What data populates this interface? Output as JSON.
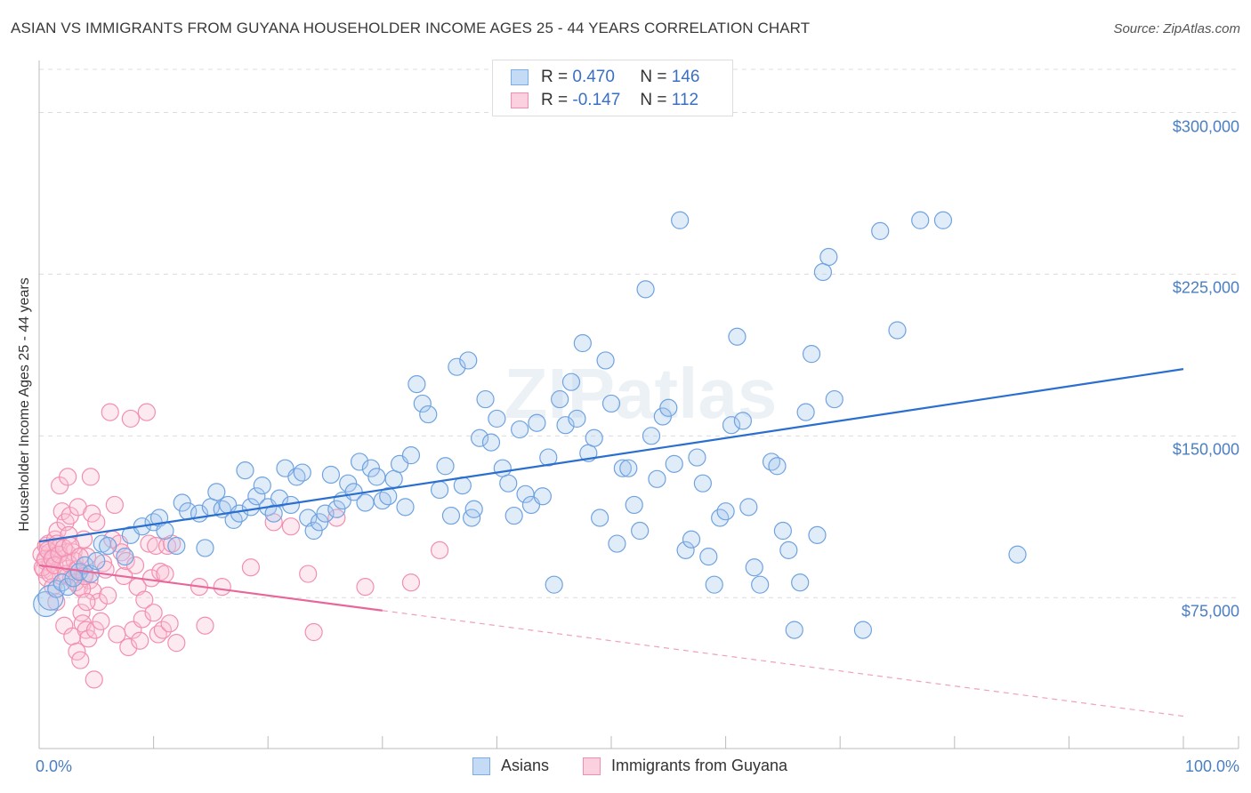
{
  "title": "ASIAN VS IMMIGRANTS FROM GUYANA HOUSEHOLDER INCOME AGES 25 - 44 YEARS CORRELATION CHART",
  "source": "Source: ZipAtlas.com",
  "watermark": "ZIPatlas",
  "colors": {
    "blue": "#7aaee8",
    "blue_line": "#2a6fcf",
    "pink": "#f28fb0",
    "pink_line": "#e8679a",
    "tick_text": "#4a7fc1"
  },
  "legend_top": {
    "rows": [
      {
        "r_label": "R =",
        "r_value": "0.470",
        "n_label": "N =",
        "n_value": "146"
      },
      {
        "r_label": "R =",
        "r_value": "-0.147",
        "n_label": "N =",
        "n_value": "112"
      }
    ]
  },
  "legend_bottom": {
    "series1": "Asians",
    "series2": "Immigrants from Guyana"
  },
  "chart_data": {
    "type": "scatter",
    "title": "ASIAN VS IMMIGRANTS FROM GUYANA HOUSEHOLDER INCOME AGES 25 - 44 YEARS CORRELATION CHART",
    "xlabel": "",
    "ylabel": "Householder Income Ages 25 - 44 years",
    "xlim": [
      0,
      100
    ],
    "ylim": [
      5000,
      320000
    ],
    "x_tick_labels": [
      "0.0%",
      "100.0%"
    ],
    "y_ticks": [
      75000,
      150000,
      225000,
      300000
    ],
    "y_tick_labels": [
      "$75,000",
      "$150,000",
      "$225,000",
      "$300,000"
    ],
    "grid": true,
    "legend": "bottom",
    "series": [
      {
        "name": "Asians",
        "r": 0.47,
        "n": 146,
        "trend": {
          "x": [
            0,
            100
          ],
          "y": [
            101000,
            181000
          ],
          "dashed_from": null
        },
        "points": [
          [
            0.6,
            72000
          ],
          [
            1.0,
            75000
          ],
          [
            1.5,
            79000
          ],
          [
            2.0,
            82000
          ],
          [
            2.5,
            80000
          ],
          [
            3.0,
            84000
          ],
          [
            3.5,
            87000
          ],
          [
            4.0,
            90000
          ],
          [
            4.5,
            86000
          ],
          [
            5.0,
            92000
          ],
          [
            5.5,
            100000
          ],
          [
            6.0,
            99000
          ],
          [
            7.5,
            94000
          ],
          [
            8.0,
            104000
          ],
          [
            9.0,
            108000
          ],
          [
            10.0,
            110000
          ],
          [
            10.5,
            112000
          ],
          [
            11.0,
            106000
          ],
          [
            12.0,
            99000
          ],
          [
            12.5,
            119000
          ],
          [
            13.0,
            115000
          ],
          [
            14.0,
            114000
          ],
          [
            14.5,
            98000
          ],
          [
            15.0,
            117000
          ],
          [
            15.5,
            124000
          ],
          [
            16.0,
            116000
          ],
          [
            16.5,
            118000
          ],
          [
            17.0,
            111000
          ],
          [
            17.5,
            114000
          ],
          [
            18.0,
            134000
          ],
          [
            18.5,
            117000
          ],
          [
            19.0,
            122000
          ],
          [
            19.5,
            127000
          ],
          [
            20.0,
            117000
          ],
          [
            20.5,
            114000
          ],
          [
            21.0,
            121000
          ],
          [
            21.5,
            135000
          ],
          [
            22.0,
            118000
          ],
          [
            22.5,
            131000
          ],
          [
            23.0,
            133000
          ],
          [
            23.5,
            112000
          ],
          [
            24.0,
            106000
          ],
          [
            24.5,
            110000
          ],
          [
            25.0,
            114000
          ],
          [
            25.5,
            132000
          ],
          [
            26.0,
            116000
          ],
          [
            26.5,
            120000
          ],
          [
            27.0,
            128000
          ],
          [
            27.5,
            124000
          ],
          [
            28.0,
            138000
          ],
          [
            28.5,
            119000
          ],
          [
            29.0,
            135000
          ],
          [
            29.5,
            131000
          ],
          [
            30.0,
            120000
          ],
          [
            30.5,
            122000
          ],
          [
            31.0,
            130000
          ],
          [
            31.5,
            137000
          ],
          [
            32.0,
            117000
          ],
          [
            32.5,
            141000
          ],
          [
            33.0,
            174000
          ],
          [
            33.5,
            165000
          ],
          [
            34.0,
            160000
          ],
          [
            35.0,
            125000
          ],
          [
            35.5,
            136000
          ],
          [
            36.0,
            113000
          ],
          [
            36.5,
            182000
          ],
          [
            37.0,
            127000
          ],
          [
            37.5,
            185000
          ],
          [
            37.8,
            112000
          ],
          [
            38.0,
            116000
          ],
          [
            38.5,
            149000
          ],
          [
            39.0,
            167000
          ],
          [
            39.5,
            147000
          ],
          [
            40.0,
            158000
          ],
          [
            40.5,
            135000
          ],
          [
            41.0,
            128000
          ],
          [
            41.5,
            113000
          ],
          [
            42.0,
            153000
          ],
          [
            42.5,
            123000
          ],
          [
            43.0,
            118000
          ],
          [
            43.5,
            156000
          ],
          [
            44.0,
            122000
          ],
          [
            44.5,
            140000
          ],
          [
            45.0,
            81000
          ],
          [
            45.5,
            167000
          ],
          [
            46.0,
            155000
          ],
          [
            46.5,
            175000
          ],
          [
            47.0,
            158000
          ],
          [
            47.5,
            193000
          ],
          [
            48.0,
            142000
          ],
          [
            48.5,
            149000
          ],
          [
            49.0,
            112000
          ],
          [
            49.5,
            185000
          ],
          [
            50.0,
            165000
          ],
          [
            50.5,
            100000
          ],
          [
            51.0,
            135000
          ],
          [
            51.5,
            135000
          ],
          [
            52.0,
            118000
          ],
          [
            52.5,
            106000
          ],
          [
            53.0,
            218000
          ],
          [
            53.5,
            150000
          ],
          [
            54.0,
            130000
          ],
          [
            54.5,
            159000
          ],
          [
            55.0,
            163000
          ],
          [
            55.5,
            137000
          ],
          [
            56.0,
            250000
          ],
          [
            56.5,
            97000
          ],
          [
            57.0,
            102000
          ],
          [
            57.5,
            140000
          ],
          [
            58.0,
            128000
          ],
          [
            58.5,
            94000
          ],
          [
            59.0,
            81000
          ],
          [
            59.5,
            112000
          ],
          [
            60.0,
            115000
          ],
          [
            60.5,
            155000
          ],
          [
            61.0,
            196000
          ],
          [
            61.5,
            157000
          ],
          [
            62.0,
            117000
          ],
          [
            62.5,
            89000
          ],
          [
            63.0,
            81000
          ],
          [
            64.0,
            138000
          ],
          [
            64.5,
            136000
          ],
          [
            65.0,
            106000
          ],
          [
            65.5,
            97000
          ],
          [
            66.0,
            60000
          ],
          [
            66.5,
            82000
          ],
          [
            67.0,
            161000
          ],
          [
            67.5,
            188000
          ],
          [
            68.0,
            104000
          ],
          [
            68.5,
            226000
          ],
          [
            69.0,
            233000
          ],
          [
            69.5,
            167000
          ],
          [
            72.0,
            60000
          ],
          [
            73.5,
            245000
          ],
          [
            75.0,
            199000
          ],
          [
            77.0,
            250000
          ],
          [
            79.0,
            250000
          ],
          [
            85.5,
            95000
          ]
        ]
      },
      {
        "name": "Immigrants from Guyana",
        "r": -0.147,
        "n": 112,
        "trend": {
          "x": [
            0,
            100
          ],
          "y": [
            90000,
            20000
          ],
          "solid_until": 30
        },
        "points": [
          [
            0.2,
            95000
          ],
          [
            0.4,
            88000
          ],
          [
            0.5,
            92000
          ],
          [
            0.6,
            99000
          ],
          [
            0.7,
            84000
          ],
          [
            0.8,
            100000
          ],
          [
            0.9,
            96000
          ],
          [
            1.0,
            91000
          ],
          [
            1.1,
            87000
          ],
          [
            1.2,
            80000
          ],
          [
            1.3,
            94000
          ],
          [
            1.4,
            102000
          ],
          [
            1.5,
            73000
          ],
          [
            1.6,
            106000
          ],
          [
            1.7,
            98000
          ],
          [
            1.8,
            127000
          ],
          [
            1.9,
            85000
          ],
          [
            2.0,
            115000
          ],
          [
            2.1,
            90000
          ],
          [
            2.2,
            62000
          ],
          [
            2.3,
            110000
          ],
          [
            2.4,
            96000
          ],
          [
            2.5,
            131000
          ],
          [
            2.6,
            104000
          ],
          [
            2.7,
            113000
          ],
          [
            2.8,
            84000
          ],
          [
            2.9,
            57000
          ],
          [
            3.0,
            96000
          ],
          [
            3.1,
            92000
          ],
          [
            3.2,
            88000
          ],
          [
            3.3,
            50000
          ],
          [
            3.4,
            117000
          ],
          [
            3.5,
            80000
          ],
          [
            3.6,
            46000
          ],
          [
            3.7,
            68000
          ],
          [
            3.8,
            63000
          ],
          [
            3.9,
            102000
          ],
          [
            4.0,
            86000
          ],
          [
            4.1,
            60000
          ],
          [
            4.2,
            94000
          ],
          [
            4.3,
            56000
          ],
          [
            4.4,
            83000
          ],
          [
            4.5,
            131000
          ],
          [
            4.6,
            114000
          ],
          [
            4.7,
            78000
          ],
          [
            4.8,
            37000
          ],
          [
            4.9,
            60000
          ],
          [
            5.0,
            110000
          ],
          [
            5.2,
            73000
          ],
          [
            5.4,
            64000
          ],
          [
            5.6,
            91000
          ],
          [
            5.8,
            88000
          ],
          [
            6.0,
            76000
          ],
          [
            6.2,
            161000
          ],
          [
            6.4,
            102000
          ],
          [
            6.6,
            118000
          ],
          [
            6.8,
            58000
          ],
          [
            7.0,
            100000
          ],
          [
            7.2,
            96000
          ],
          [
            7.4,
            85000
          ],
          [
            7.6,
            92000
          ],
          [
            7.8,
            52000
          ],
          [
            8.0,
            158000
          ],
          [
            8.2,
            60000
          ],
          [
            8.4,
            90000
          ],
          [
            8.6,
            80000
          ],
          [
            8.8,
            55000
          ],
          [
            9.0,
            65000
          ],
          [
            9.2,
            74000
          ],
          [
            9.4,
            161000
          ],
          [
            9.6,
            100000
          ],
          [
            9.8,
            84000
          ],
          [
            10.0,
            68000
          ],
          [
            10.2,
            99000
          ],
          [
            10.4,
            58000
          ],
          [
            10.6,
            87000
          ],
          [
            10.8,
            60000
          ],
          [
            11.0,
            86000
          ],
          [
            11.2,
            99000
          ],
          [
            11.4,
            63000
          ],
          [
            11.6,
            100000
          ],
          [
            12.0,
            54000
          ],
          [
            0.3,
            89000
          ],
          [
            0.55,
            93000
          ],
          [
            0.75,
            97000
          ],
          [
            0.95,
            86000
          ],
          [
            1.15,
            93000
          ],
          [
            1.35,
            90000
          ],
          [
            1.55,
            100000
          ],
          [
            1.75,
            95000
          ],
          [
            2.15,
            98000
          ],
          [
            2.35,
            86000
          ],
          [
            2.55,
            91000
          ],
          [
            2.75,
            99000
          ],
          [
            3.15,
            82000
          ],
          [
            3.35,
            88000
          ],
          [
            3.55,
            94000
          ],
          [
            3.75,
            79000
          ],
          [
            3.95,
            85000
          ],
          [
            4.15,
            73000
          ],
          [
            14.0,
            80000
          ],
          [
            14.5,
            62000
          ],
          [
            16.0,
            80000
          ],
          [
            18.5,
            89000
          ],
          [
            20.5,
            110000
          ],
          [
            22.0,
            108000
          ],
          [
            24.0,
            59000
          ],
          [
            23.5,
            86000
          ],
          [
            26.0,
            112000
          ],
          [
            28.5,
            80000
          ],
          [
            32.5,
            82000
          ],
          [
            35.0,
            97000
          ]
        ]
      }
    ]
  }
}
